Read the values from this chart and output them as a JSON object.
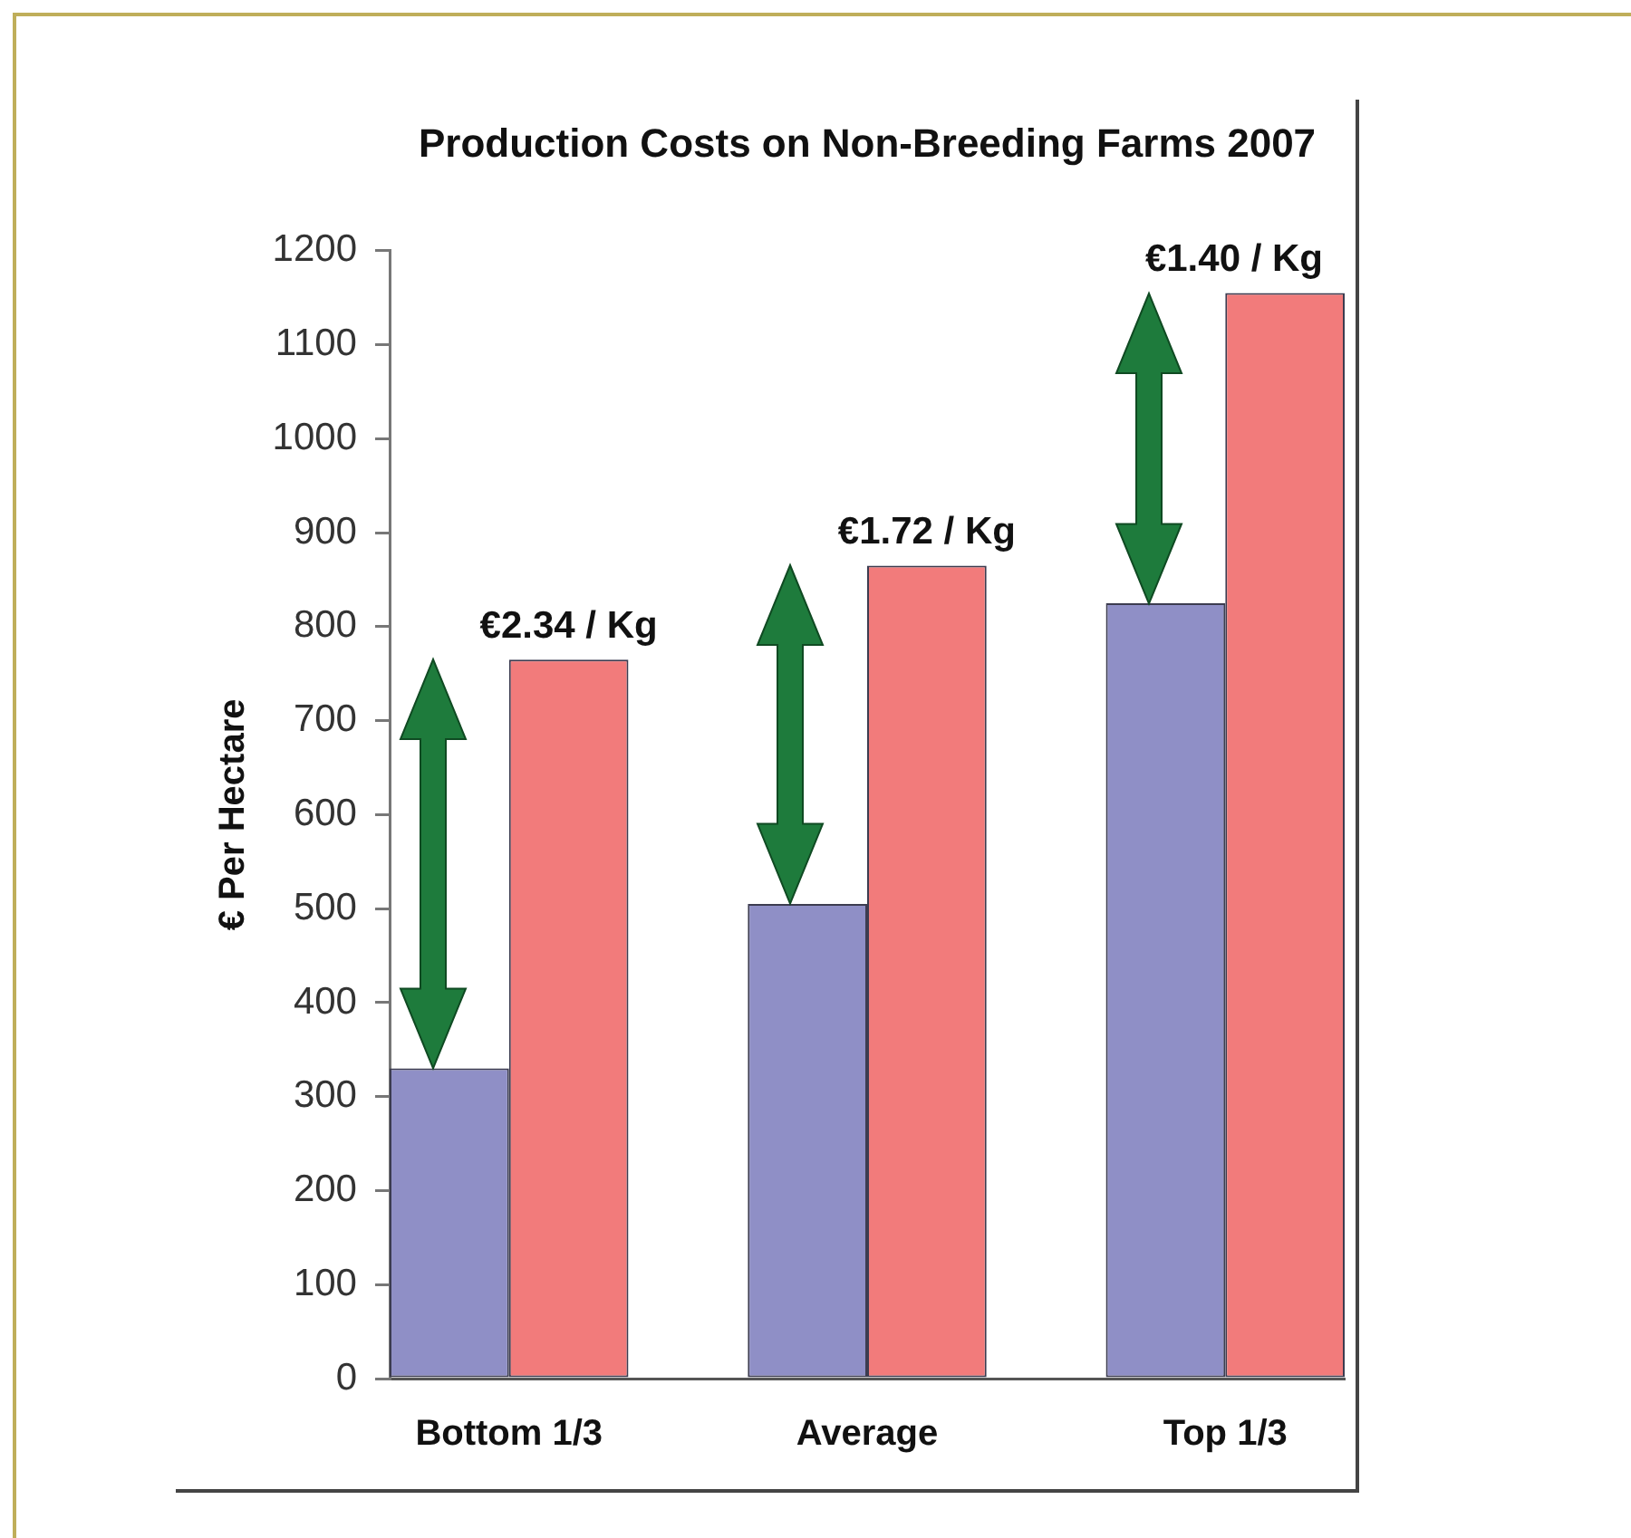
{
  "chart_data": {
    "type": "bar",
    "title": "Production Costs on Non-Breeding Farms 2007",
    "ylabel": "€ Per Hectare",
    "categories": [
      "Bottom 1/3",
      "Average",
      "Top 1/3"
    ],
    "series": [
      {
        "color": "#8f8fc6",
        "values": [
          330,
          505,
          825
        ]
      },
      {
        "color": "#f27b7b",
        "values": [
          765,
          865,
          1155
        ]
      }
    ],
    "ylim": [
      0,
      1200
    ],
    "yticks": [
      0,
      100,
      200,
      300,
      400,
      500,
      600,
      700,
      800,
      900,
      1000,
      1100,
      1200
    ],
    "grid": false,
    "legend": false,
    "annotations": [
      {
        "text": "€2.34 / Kg",
        "x": "Bottom 1/3",
        "y": 765
      },
      {
        "text": "€1.72 / Kg",
        "x": "Average",
        "y": 865
      },
      {
        "text": "€1.40 / Kg",
        "x": "Top 1/3",
        "y": 1155
      }
    ]
  }
}
